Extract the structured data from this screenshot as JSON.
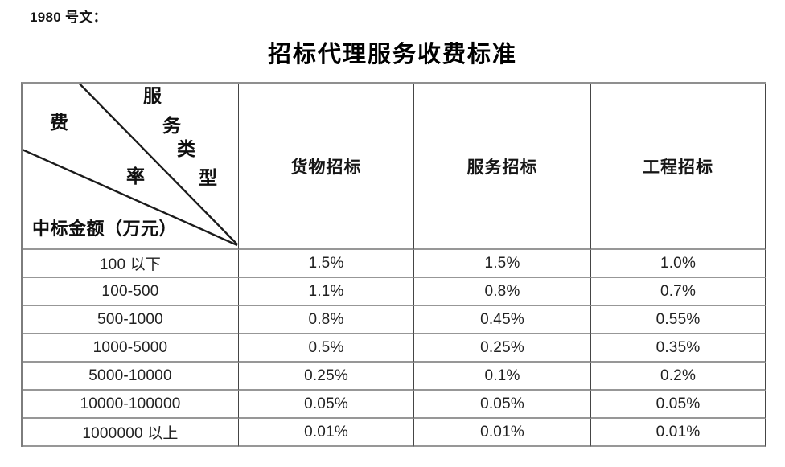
{
  "page": {
    "doc_label": "1980 号文：",
    "title": "招标代理服务收费标准"
  },
  "table": {
    "corner": {
      "fee_rate_chars": [
        "费",
        "率"
      ],
      "service_type_chars": [
        "服",
        "务",
        "类",
        "型"
      ],
      "amount_label": "中标金额（万元）"
    },
    "columns": [
      "货物招标",
      "服务招标",
      "工程招标"
    ],
    "rows": [
      {
        "range": "100 以下",
        "values": [
          "1.5%",
          "1.5%",
          "1.0%"
        ]
      },
      {
        "range": "100-500",
        "values": [
          "1.1%",
          "0.8%",
          "0.7%"
        ]
      },
      {
        "range": "500-1000",
        "values": [
          "0.8%",
          "0.45%",
          "0.55%"
        ]
      },
      {
        "range": "1000-5000",
        "values": [
          "0.5%",
          "0.25%",
          "0.35%"
        ]
      },
      {
        "range": "5000-10000",
        "values": [
          "0.25%",
          "0.1%",
          "0.2%"
        ]
      },
      {
        "range": "10000-100000",
        "values": [
          "0.05%",
          "0.05%",
          "0.05%"
        ]
      },
      {
        "range": "1000000 以上",
        "values": [
          "0.01%",
          "0.01%",
          "0.01%"
        ]
      }
    ]
  }
}
